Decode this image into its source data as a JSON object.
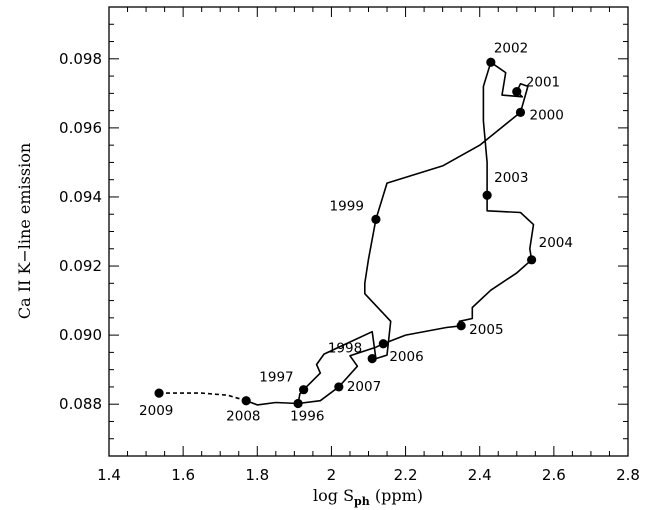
{
  "chart_data": {
    "type": "line",
    "title": "",
    "xlabel": "log S",
    "xlabel_subscript": "ph",
    "xlabel_unit": "(ppm)",
    "ylabel": "Ca II K−line emission",
    "xlim": [
      1.4,
      2.8
    ],
    "ylim": [
      0.0865,
      0.0995
    ],
    "x_major_ticks": [
      1.4,
      1.6,
      1.8,
      2.0,
      2.2,
      2.4,
      2.6,
      2.8
    ],
    "x_tick_labels": [
      "1.4",
      "1.6",
      "1.8",
      "2",
      "2.2",
      "2.4",
      "2.6",
      "2.8"
    ],
    "x_minor_step": 0.05,
    "y_major_ticks": [
      0.088,
      0.09,
      0.092,
      0.094,
      0.096,
      0.098
    ],
    "y_tick_labels": [
      "0.088",
      "0.090",
      "0.092",
      "0.094",
      "0.096",
      "0.098"
    ],
    "y_minor_step": 0.0005,
    "grid": false,
    "legend": "none",
    "points": [
      {
        "year": "1996",
        "x": 1.91,
        "y": 0.08802
      },
      {
        "year": "1997",
        "x": 1.925,
        "y": 0.08842
      },
      {
        "year": "1998",
        "x": 2.11,
        "y": 0.08932
      },
      {
        "year": "1999",
        "x": 2.12,
        "y": 0.09335
      },
      {
        "year": "2000",
        "x": 2.51,
        "y": 0.09645
      },
      {
        "year": "2001",
        "x": 2.5,
        "y": 0.09705
      },
      {
        "year": "2002",
        "x": 2.43,
        "y": 0.0979
      },
      {
        "year": "2003",
        "x": 2.42,
        "y": 0.09405
      },
      {
        "year": "2004",
        "x": 2.54,
        "y": 0.09218
      },
      {
        "year": "2005",
        "x": 2.35,
        "y": 0.09027
      },
      {
        "year": "2006",
        "x": 2.14,
        "y": 0.08975
      },
      {
        "year": "2007",
        "x": 2.02,
        "y": 0.0885
      },
      {
        "year": "2008",
        "x": 1.77,
        "y": 0.0881
      },
      {
        "year": "2009",
        "x": 1.535,
        "y": 0.08832
      }
    ],
    "dashed_track": [
      [
        1.535,
        0.08832
      ],
      [
        1.65,
        0.08832
      ],
      [
        1.72,
        0.08826
      ],
      [
        1.77,
        0.0881
      ]
    ],
    "solid_track": [
      [
        1.77,
        0.0881
      ],
      [
        1.8,
        0.08798
      ],
      [
        1.85,
        0.08805
      ],
      [
        1.91,
        0.08802
      ],
      [
        1.915,
        0.0883
      ],
      [
        1.925,
        0.08842
      ],
      [
        1.97,
        0.0889
      ],
      [
        1.96,
        0.08915
      ],
      [
        1.98,
        0.08945
      ],
      [
        2.05,
        0.0898
      ],
      [
        2.11,
        0.0901
      ],
      [
        2.12,
        0.08932
      ],
      [
        2.15,
        0.08942
      ],
      [
        2.16,
        0.0904
      ],
      [
        2.09,
        0.0912
      ],
      [
        2.09,
        0.0915
      ],
      [
        2.1,
        0.0922
      ],
      [
        2.12,
        0.09335
      ],
      [
        2.15,
        0.0944
      ],
      [
        2.3,
        0.0949
      ],
      [
        2.4,
        0.0955
      ],
      [
        2.51,
        0.09645
      ],
      [
        2.53,
        0.0972
      ],
      [
        2.51,
        0.09728
      ],
      [
        2.5,
        0.09705
      ],
      [
        2.515,
        0.0969
      ],
      [
        2.46,
        0.09695
      ],
      [
        2.47,
        0.0976
      ],
      [
        2.43,
        0.0979
      ],
      [
        2.41,
        0.0972
      ],
      [
        2.41,
        0.0962
      ],
      [
        2.42,
        0.095
      ],
      [
        2.42,
        0.09405
      ],
      [
        2.42,
        0.0936
      ],
      [
        2.51,
        0.09355
      ],
      [
        2.545,
        0.0932
      ],
      [
        2.535,
        0.0925
      ],
      [
        2.54,
        0.09218
      ],
      [
        2.5,
        0.0918
      ],
      [
        2.43,
        0.0913
      ],
      [
        2.38,
        0.0908
      ],
      [
        2.38,
        0.09048
      ],
      [
        2.345,
        0.0904
      ],
      [
        2.35,
        0.09027
      ],
      [
        2.31,
        0.09022
      ],
      [
        2.2,
        0.09
      ],
      [
        2.14,
        0.08975
      ],
      [
        2.12,
        0.08965
      ],
      [
        2.05,
        0.0894
      ],
      [
        2.07,
        0.0891
      ],
      [
        2.02,
        0.0885
      ],
      [
        1.97,
        0.0881
      ],
      [
        1.91,
        0.08802
      ]
    ]
  }
}
